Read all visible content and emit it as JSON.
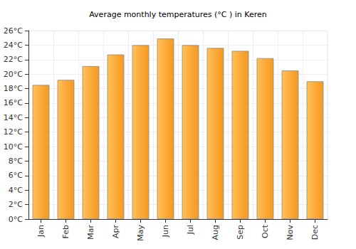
{
  "chart_data": {
    "type": "bar",
    "title": "Average monthly temperatures (°C ) in Keren",
    "categories": [
      "Jan",
      "Feb",
      "Mar",
      "Apr",
      "May",
      "Jun",
      "Jul",
      "Aug",
      "Sep",
      "Oct",
      "Nov",
      "Dec"
    ],
    "values": [
      18.5,
      19.2,
      21.1,
      22.7,
      24.0,
      24.9,
      24.0,
      23.6,
      23.2,
      22.2,
      20.5,
      19.0
    ],
    "color": "#fca93a",
    "ylim": [
      0,
      26
    ],
    "yticks": [
      {
        "value": 0,
        "label": "0°C"
      },
      {
        "value": 2,
        "label": "2°C"
      },
      {
        "value": 4,
        "label": "4°C"
      },
      {
        "value": 6,
        "label": "6°C"
      },
      {
        "value": 8,
        "label": "8°C"
      },
      {
        "value": 10,
        "label": "10°C"
      },
      {
        "value": 12,
        "label": "12°C"
      },
      {
        "value": 14,
        "label": "14°C"
      },
      {
        "value": 16,
        "label": "16°C"
      },
      {
        "value": 18,
        "label": "18°C"
      },
      {
        "value": 20,
        "label": "20°C"
      },
      {
        "value": 22,
        "label": "22°C"
      },
      {
        "value": 24,
        "label": "24°C"
      },
      {
        "value": 26,
        "label": "26°C"
      }
    ],
    "grid": true
  }
}
